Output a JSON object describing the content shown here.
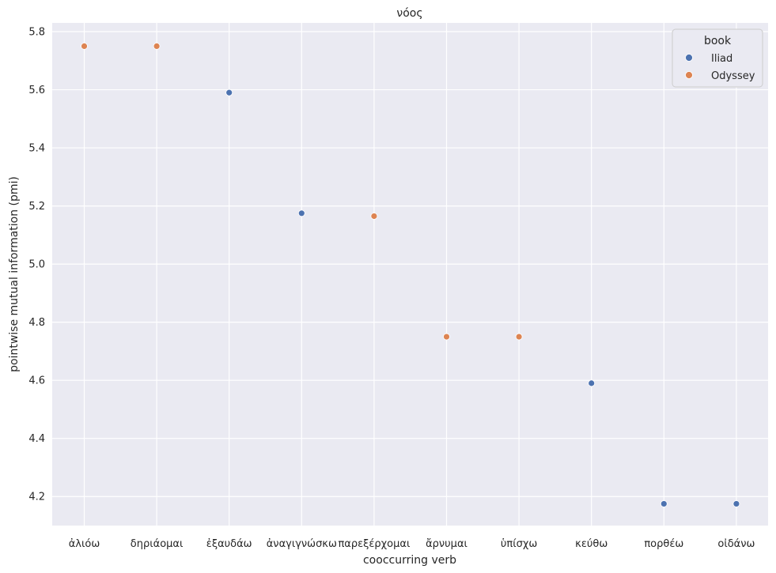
{
  "chart_data": {
    "type": "scatter",
    "title": "νόος",
    "xlabel": "cooccurring verb",
    "ylabel": "pointwise mutual information (pmi)",
    "categories": [
      "ἀλιόω",
      "δηριάομαι",
      "ἐξαυδάω",
      "ἀναγιγνώσκω",
      "παρεξέρχομαι",
      "ἄρνυμαι",
      "ὑπίσχω",
      "κεύθω",
      "πορθέω",
      "οἰδάνω"
    ],
    "ylim": [
      4.1,
      5.83
    ],
    "yticks": [
      "4.2",
      "4.4",
      "4.6",
      "4.8",
      "5.0",
      "5.2",
      "5.4",
      "5.6",
      "5.8"
    ],
    "grid": true,
    "legend": {
      "title": "book",
      "placement": "top-right",
      "entries": [
        {
          "name": "Iliad",
          "color": "#4c72b0"
        },
        {
          "name": "Odyssey",
          "color": "#dd8452"
        }
      ]
    },
    "series": [
      {
        "name": "Iliad",
        "color": "#4c72b0",
        "points": [
          {
            "x": "ἐξαυδάω",
            "y": 5.59
          },
          {
            "x": "ἀναγιγνώσκω",
            "y": 5.175
          },
          {
            "x": "κεύθω",
            "y": 4.59
          },
          {
            "x": "πορθέω",
            "y": 4.175
          },
          {
            "x": "οἰδάνω",
            "y": 4.175
          }
        ]
      },
      {
        "name": "Odyssey",
        "color": "#dd8452",
        "points": [
          {
            "x": "ἀλιόω",
            "y": 5.75
          },
          {
            "x": "δηριάομαι",
            "y": 5.75
          },
          {
            "x": "παρεξέρχομαι",
            "y": 5.165
          },
          {
            "x": "ἄρνυμαι",
            "y": 4.75
          },
          {
            "x": "ὑπίσχω",
            "y": 4.75
          }
        ]
      }
    ]
  }
}
